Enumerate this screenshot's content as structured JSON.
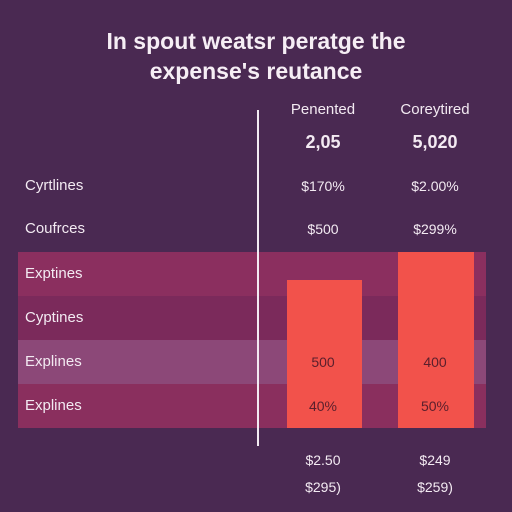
{
  "title": [
    "In spout weatsr peratge the",
    "expense's reutance"
  ],
  "columns": [
    "Penented",
    "Coreytired"
  ],
  "totals": [
    "2,05",
    "5,020"
  ],
  "rows": [
    {
      "label": "Cyrtlines",
      "values": [
        "$170%",
        "$2.00%"
      ]
    },
    {
      "label": "Coufrces",
      "values": [
        "$500",
        "$299%"
      ]
    },
    {
      "label": "Exptines"
    },
    {
      "label": "Cyptines"
    },
    {
      "label": "Explines",
      "values": [
        "500",
        "400"
      ]
    },
    {
      "label": "Explines",
      "values": [
        "40%",
        "50%"
      ]
    }
  ],
  "footer": [
    [
      "$2.50",
      "$249"
    ],
    [
      "$295)",
      "$259)"
    ]
  ]
}
